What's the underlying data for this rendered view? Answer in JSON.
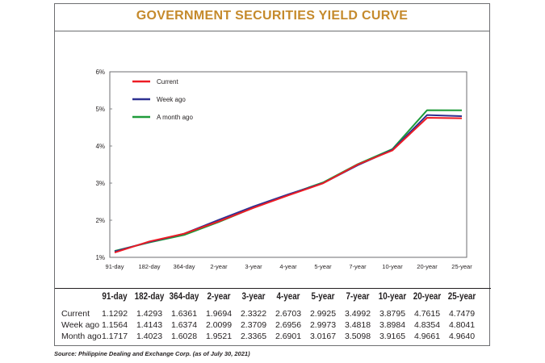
{
  "colors": {
    "title": "#c58a2c",
    "current": "#ed1c24",
    "week_ago": "#2e3192",
    "month_ago": "#1f9b3a"
  },
  "title": "GOVERNMENT SECURITIES YIELD CURVE",
  "source": "Source: Philippine Dealing and Exchange Corp. (as of July 30, 2021)",
  "chart_data": {
    "type": "line",
    "title": "GOVERNMENT SECURITIES YIELD CURVE",
    "categories": [
      "91-day",
      "182-day",
      "364-day",
      "2-year",
      "3-year",
      "4-year",
      "5-year",
      "7-year",
      "10-year",
      "20-year",
      "25-year"
    ],
    "y_ticks": [
      "1%",
      "2%",
      "3%",
      "4%",
      "5%",
      "6%"
    ],
    "ylim": [
      1,
      6
    ],
    "grid": false,
    "legend_position": "top-left",
    "series": [
      {
        "name": "Current",
        "color": "#ed1c24",
        "values": [
          1.1292,
          1.4293,
          1.6361,
          1.9694,
          2.3322,
          2.6703,
          2.9925,
          3.4992,
          3.8795,
          4.7615,
          4.7479
        ]
      },
      {
        "name": "Week ago",
        "color": "#2e3192",
        "values": [
          1.1564,
          1.4143,
          1.6374,
          2.0099,
          2.3709,
          2.6956,
          2.9973,
          3.4818,
          3.8984,
          4.8354,
          4.8041
        ]
      },
      {
        "name": "A month ago",
        "color": "#1f9b3a",
        "values": [
          1.1717,
          1.4023,
          1.6028,
          1.9521,
          2.3365,
          2.6901,
          3.0167,
          3.5098,
          3.9165,
          4.9661,
          4.964
        ]
      }
    ]
  },
  "table": {
    "headers": [
      "91-day",
      "182-day",
      "364-day",
      "2-year",
      "3-year",
      "4-year",
      "5-year",
      "7-year",
      "10-year",
      "20-year",
      "25-year"
    ],
    "rows": [
      {
        "label": "Current",
        "values": [
          "1.1292",
          "1.4293",
          "1.6361",
          "1.9694",
          "2.3322",
          "2.6703",
          "2.9925",
          "3.4992",
          "3.8795",
          "4.7615",
          "4.7479"
        ]
      },
      {
        "label": "Week ago",
        "values": [
          "1.1564",
          "1.4143",
          "1.6374",
          "2.0099",
          "2.3709",
          "2.6956",
          "2.9973",
          "3.4818",
          "3.8984",
          "4.8354",
          "4.8041"
        ]
      },
      {
        "label": "Month ago",
        "values": [
          "1.1717",
          "1.4023",
          "1.6028",
          "1.9521",
          "2.3365",
          "2.6901",
          "3.0167",
          "3.5098",
          "3.9165",
          "4.9661",
          "4.9640"
        ]
      }
    ]
  }
}
